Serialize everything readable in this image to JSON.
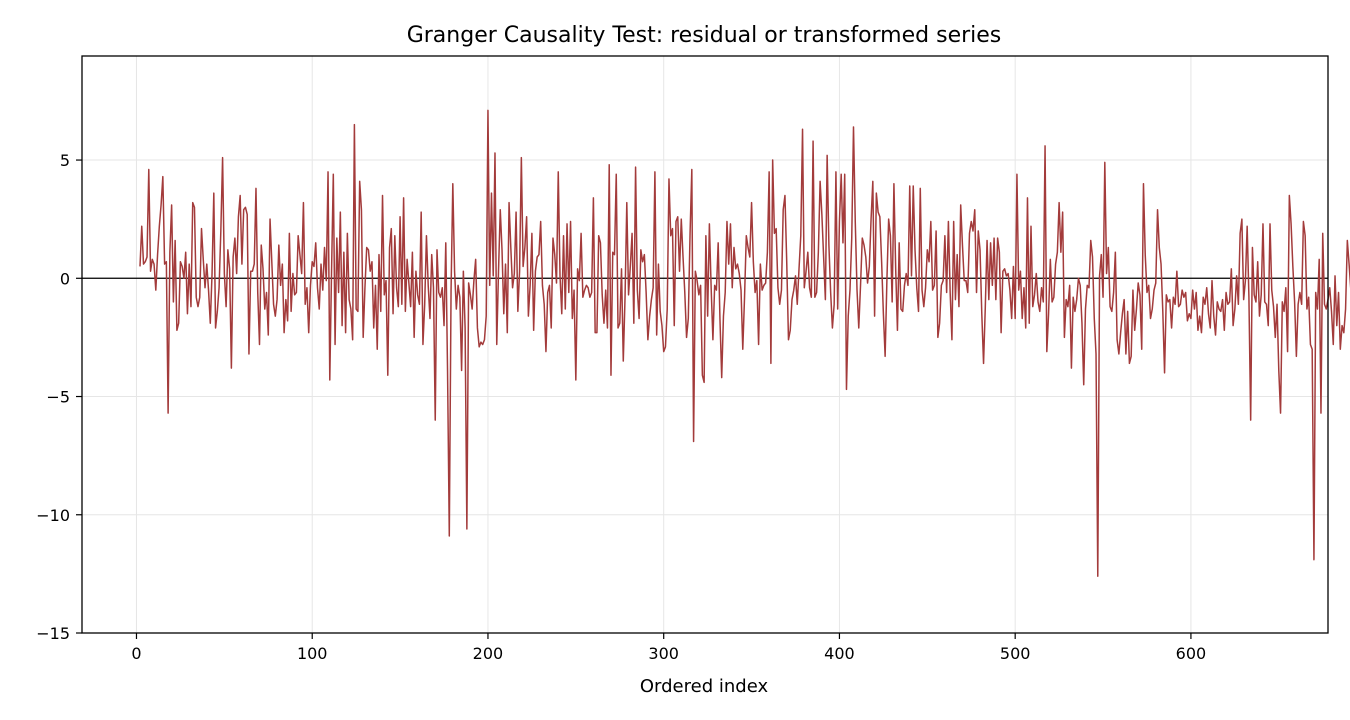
{
  "chart_data": {
    "type": "line",
    "title": "Granger Causality Test: residual or transformed series",
    "xlabel": "Ordered index",
    "ylabel": "",
    "xlim": [
      -31,
      678
    ],
    "ylim": [
      -15,
      9.4
    ],
    "x_ticks": [
      0,
      100,
      200,
      300,
      400,
      500,
      600
    ],
    "y_ticks": [
      -15,
      -10,
      -5,
      0,
      5
    ],
    "y_tick_labels": [
      "−15",
      "−10",
      "−5",
      "0",
      "5"
    ],
    "grid": true,
    "reference_line_y": 0,
    "series": [
      {
        "color": "#a33b3b",
        "x_start": 2,
        "x_step": 1,
        "values": [
          0.5,
          2.2,
          0.6,
          0.7,
          0.9,
          4.6,
          0.3,
          0.8,
          0.6,
          -0.5,
          1.0,
          2.2,
          3.1,
          4.3,
          0.6,
          0.7,
          -5.7,
          1.1,
          3.1,
          -1.0,
          1.6,
          -2.2,
          -1.9,
          0.7,
          0.5,
          0.0,
          1.1,
          -1.5,
          0.6,
          -1.2,
          3.2,
          3.0,
          -0.8,
          -1.2,
          -0.8,
          2.1,
          0.8,
          -0.4,
          0.6,
          -0.5,
          -1.9,
          0.2,
          3.6,
          -2.1,
          -1.4,
          -0.4,
          2.0,
          5.1,
          0.2,
          -1.2,
          1.2,
          0.4,
          -3.8,
          0.9,
          1.7,
          0.2,
          2.6,
          3.5,
          0.6,
          2.9,
          3.0,
          2.7,
          -3.2,
          0.3,
          0.3,
          0.6,
          3.8,
          -0.6,
          -2.8,
          1.4,
          0.4,
          -1.3,
          -0.6,
          -2.4,
          2.5,
          0.7,
          -1.1,
          -1.6,
          -0.9,
          1.4,
          -0.3,
          0.6,
          -2.3,
          -0.9,
          -1.8,
          1.9,
          -1.4,
          0.2,
          -0.7,
          -0.6,
          1.8,
          1.0,
          0.2,
          3.2,
          -1.1,
          -0.4,
          -2.3,
          -0.3,
          0.7,
          0.5,
          1.5,
          -0.4,
          -1.3,
          0.6,
          -0.5,
          1.3,
          -0.1,
          4.5,
          -4.3,
          0.3,
          4.4,
          -2.8,
          1.7,
          -0.6,
          2.8,
          -2.0,
          1.1,
          -2.3,
          1.9,
          -0.9,
          -1.3,
          -2.6,
          6.5,
          -1.3,
          -1.4,
          4.1,
          2.9,
          -2.5,
          -0.4,
          1.3,
          1.2,
          0.3,
          0.7,
          -2.1,
          -0.3,
          -3.0,
          1.0,
          -1.4,
          3.5,
          -0.7,
          -0.1,
          -4.1,
          1.3,
          2.1,
          -1.5,
          1.8,
          -0.4,
          -1.2,
          2.6,
          -1.1,
          3.4,
          -1.4,
          0.8,
          -0.2,
          -1.2,
          1.1,
          -2.5,
          0.3,
          -0.7,
          -1.1,
          2.8,
          -2.8,
          -1.1,
          1.8,
          -0.3,
          -1.7,
          1.0,
          -0.4,
          -6.0,
          1.2,
          -0.6,
          -0.8,
          -0.4,
          -2.0,
          1.5,
          -3.9,
          -10.9,
          -0.5,
          4.0,
          0.3,
          -1.3,
          -0.3,
          -0.8,
          -3.9,
          0.3,
          -2.1,
          -10.6,
          -0.2,
          -0.7,
          -1.3,
          -0.1,
          0.8,
          -2.1,
          -2.9,
          -2.7,
          -2.8,
          -2.6,
          -1.6,
          7.1,
          -0.3,
          3.6,
          0.1,
          5.3,
          -2.8,
          0.3,
          2.9,
          1.2,
          -1.5,
          0.6,
          -2.3,
          3.2,
          1.3,
          -0.4,
          0.2,
          2.8,
          -1.4,
          0.3,
          5.1,
          0.5,
          1.3,
          2.6,
          -1.6,
          -0.3,
          1.9,
          -2.2,
          0.3,
          0.9,
          1.0,
          2.4,
          -0.3,
          -1.1,
          -3.1,
          -0.6,
          -0.3,
          -2.1,
          1.7,
          1.0,
          -0.2,
          4.5,
          0.1,
          -1.5,
          1.8,
          -1.3,
          2.3,
          -0.6,
          2.4,
          -1.7,
          -0.5,
          -4.3,
          0.4,
          -0.1,
          1.9,
          -0.8,
          -0.5,
          -0.3,
          -0.4,
          -0.8,
          -0.6,
          3.4,
          -2.3,
          -2.3,
          1.8,
          1.5,
          -0.7,
          -1.9,
          -0.5,
          -2.1,
          4.8,
          -4.1,
          1.1,
          1.0,
          4.4,
          -2.1,
          -1.9,
          0.4,
          -3.5,
          -0.8,
          3.2,
          -0.7,
          0.5,
          1.9,
          -1.9,
          4.7,
          -0.5,
          -1.7,
          1.2,
          0.7,
          1.0,
          -0.6,
          -2.6,
          -1.6,
          -0.9,
          -0.4,
          4.5,
          -2.4,
          0.6,
          -1.4,
          -2.0,
          -3.1,
          -2.9,
          -1.3,
          4.2,
          1.8,
          2.1,
          -2.0,
          2.4,
          2.6,
          0.3,
          2.5,
          0.9,
          -0.6,
          -2.5,
          -1.7,
          1.9,
          4.6,
          -6.9,
          0.3,
          -0.1,
          -0.7,
          -0.3,
          -4.1,
          -4.4,
          1.8,
          -1.6,
          2.3,
          -0.4,
          -2.6,
          -0.3,
          -0.5,
          1.5,
          -1.7,
          -4.2,
          -1.6,
          -0.6,
          2.4,
          0.6,
          2.3,
          -0.4,
          1.3,
          0.4,
          0.6,
          0.2,
          -0.5,
          -3.0,
          -0.8,
          1.8,
          1.3,
          0.9,
          3.2,
          0.7,
          -0.6,
          -0.1,
          -2.8,
          0.6,
          -0.5,
          -0.3,
          -0.2,
          1.1,
          4.5,
          -3.6,
          5.0,
          1.9,
          2.1,
          -0.4,
          -1.1,
          -0.5,
          2.9,
          3.5,
          0.7,
          -2.6,
          -2.2,
          -0.9,
          -0.5,
          0.1,
          -1.1,
          0.4,
          1.8,
          6.3,
          -0.4,
          0.3,
          1.1,
          -0.4,
          -0.8,
          5.8,
          -0.8,
          -0.6,
          1.1,
          4.1,
          2.7,
          0.9,
          -0.9,
          5.2,
          1.4,
          -0.6,
          -2.1,
          -1.1,
          4.5,
          -1.3,
          2.4,
          4.4,
          1.5,
          4.4,
          -4.7,
          -1.6,
          -0.5,
          1.7,
          6.4,
          2.4,
          -0.5,
          -2.1,
          -0.3,
          1.7,
          1.4,
          0.9,
          -0.2,
          0.5,
          2.5,
          4.1,
          -1.6,
          3.6,
          2.8,
          2.6,
          0.7,
          -1.5,
          -3.3,
          -0.1,
          2.5,
          1.8,
          -1.0,
          4.0,
          0.4,
          -2.2,
          1.5,
          -1.3,
          -1.4,
          -0.3,
          0.2,
          -0.3,
          3.9,
          0.1,
          3.9,
          1.2,
          -0.4,
          -1.4,
          3.8,
          -0.5,
          -1.2,
          -0.4,
          1.2,
          0.7,
          2.4,
          -0.5,
          -0.3,
          2.0,
          -2.5,
          -1.9,
          -0.3,
          -0.1,
          1.8,
          -0.6,
          2.4,
          -0.6,
          -2.6,
          2.4,
          -0.9,
          1.0,
          -1.2,
          3.1,
          1.4,
          -0.1,
          -0.1,
          -0.6,
          1.9,
          2.4,
          2.0,
          2.9,
          -0.6,
          2.0,
          1.2,
          -1.5,
          -3.6,
          -1.2,
          1.6,
          -0.9,
          1.5,
          -0.3,
          1.7,
          -0.9,
          1.7,
          1.1,
          -2.3,
          0.3,
          0.4,
          0.1,
          0.2,
          -0.5,
          -1.7,
          0.5,
          -1.7,
          4.4,
          -0.5,
          0.3,
          -1.7,
          -0.4,
          -2.1,
          3.4,
          -1.9,
          2.2,
          -1.2,
          -0.7,
          0.2,
          -1.0,
          -1.4,
          -0.4,
          -1.0,
          5.6,
          -3.1,
          -1.5,
          0.8,
          -1.0,
          -0.8,
          0.6,
          1.1,
          3.2,
          1.1,
          2.8,
          -2.5,
          -0.9,
          -1.2,
          -0.3,
          -3.8,
          -0.8,
          -1.4,
          -0.9,
          0.0,
          -0.3,
          -1.9,
          -4.5,
          -1.3,
          -0.3,
          -0.4,
          1.6,
          0.9,
          -1.7,
          -3.2,
          -12.6,
          0.1,
          1.0,
          -0.8,
          4.9,
          0.2,
          1.3,
          -1.2,
          -1.4,
          -0.6,
          1.1,
          -2.6,
          -3.2,
          -2.3,
          -1.5,
          -0.9,
          -3.2,
          -1.4,
          -3.6,
          -3.3,
          -0.5,
          -2.2,
          -1.3,
          -0.2,
          -0.7,
          -3.0,
          4.0,
          1.0,
          -0.6,
          -0.3,
          -1.7,
          -1.3,
          -0.5,
          -0.2,
          2.9,
          1.3,
          0.6,
          -1.4,
          -4.0,
          -0.7,
          -1.0,
          -0.9,
          -2.1,
          -0.8,
          -1.1,
          0.3,
          -1.2,
          -1.1,
          -0.5,
          -0.8,
          -0.6,
          -1.8,
          -1.5,
          -1.7,
          -0.5,
          -1.3,
          -0.6,
          -2.2,
          -1.6,
          -2.3,
          -0.8,
          -1.1,
          -0.4,
          -1.5,
          -2.1,
          -0.1,
          -1.6,
          -2.4,
          -1.0,
          -1.3,
          -1.4,
          -0.9,
          -2.2,
          -0.6,
          -1.1,
          -1.0,
          0.4,
          -2.0,
          -1.3,
          0.1,
          -1.1,
          1.9,
          2.5,
          -0.9,
          -0.1,
          2.2,
          -0.8,
          -6.0,
          1.3,
          -0.7,
          -1.0,
          0.7,
          -1.6,
          -0.7,
          2.3,
          -1.0,
          -1.1,
          -2.0,
          2.3,
          -0.5,
          -1.2,
          -2.5,
          -1.1,
          -3.9,
          -5.7,
          -1.0,
          -1.4,
          -0.4,
          -3.1,
          3.5,
          2.3,
          0.5,
          -1.0,
          -3.3,
          -1.1,
          -0.6,
          -1.1,
          2.4,
          1.8,
          -1.3,
          -0.8,
          -2.8,
          -3.0,
          -11.9,
          -0.6,
          -1.3,
          0.8,
          -5.7,
          1.9,
          -1.1,
          -1.3,
          -0.9,
          -0.4,
          -1.4,
          -2.8,
          0.1,
          -2.0,
          -0.6,
          -3.0,
          -2.0,
          -2.3,
          -1.3,
          1.6,
          0.6,
          -0.5,
          0.9,
          -2.6,
          -0.2,
          5.4,
          -1.1,
          0.4,
          -2.9,
          -0.2,
          0.7,
          -1.3,
          -2.1,
          1.4,
          -0.7,
          -0.7,
          -4.9,
          -1.1,
          -1.7,
          -1.5,
          -0.2,
          -3.2,
          -2.9,
          -0.6,
          0.0,
          0.8,
          -0.9,
          -3.0,
          0.6,
          -1.8,
          0.5,
          -0.7,
          -3.1,
          6.4,
          -0.5,
          -0.8,
          -2.2,
          -0.1,
          -2.7,
          -1.9,
          -1.3,
          -0.6,
          -0.2,
          -1.6,
          -0.7,
          -2.2,
          -1.6,
          -1.5,
          -1.9,
          -2.9,
          -11.6,
          1.3,
          -3.0,
          -0.6,
          -0.2,
          -0.9,
          -2.5,
          0.2,
          -0.5,
          -2.2,
          -1.8,
          -1.0,
          -0.6,
          -1.2,
          -0.4,
          -2.6,
          -2.0,
          -0.8,
          -1.3,
          -1.1,
          -0.5,
          -2.8,
          -0.4,
          -1.5,
          -1.7,
          -2.3,
          -2.8,
          -2.3,
          -3.9,
          -10.3,
          -1.5,
          -4.6,
          -1.9,
          -3.5,
          -11.0,
          2.8,
          -2.7,
          -0.6,
          -1.1,
          -0.9,
          -1.5,
          -0.4,
          -1.7,
          -2.4,
          3.2,
          -4.8,
          1.5,
          -0.4,
          2.1,
          1.8,
          -3.1,
          -2.8,
          4.0,
          -3.1,
          3.9,
          -1.1,
          -13.9,
          1.7,
          -1.6,
          -2.2,
          3.8,
          -1.0,
          -11.7,
          1.6,
          -2.6,
          -9.2,
          4.2,
          5.7,
          8.3,
          -2.4,
          0.5,
          -3.5,
          -0.4,
          4.9,
          -11.8,
          -0.8,
          2.6,
          -2.6,
          -0.6,
          1.1,
          -0.4,
          4.5,
          4.9,
          -0.7,
          -0.4,
          -0.3,
          1.0,
          -0.1,
          2.6,
          0.6,
          4.1,
          -1.5,
          2.2,
          -0.4,
          -11.0,
          0.3,
          -2.5,
          3.0,
          -0.4,
          5.6,
          -2.4,
          2.6,
          -4.0,
          0.5,
          4.1,
          -0.8,
          -1.2,
          6.6,
          -12.4,
          -3.6,
          4.0,
          -10.5,
          -11.2,
          7.3,
          2.8,
          -0.7,
          -2.4,
          -2.1,
          4.7,
          -3.1,
          -2.4,
          -0.1
        ]
      }
    ]
  }
}
